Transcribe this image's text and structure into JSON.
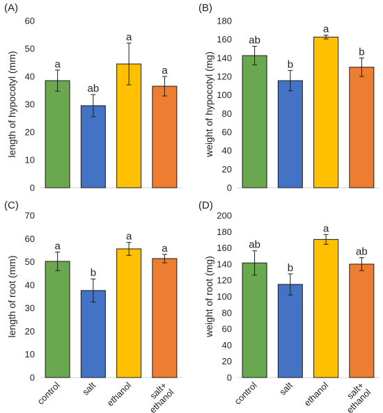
{
  "chart_data": [
    {
      "type": "bar",
      "panel_label": "(A)",
      "categories": [
        "control",
        "salt",
        "ethanol",
        "salt+\nethanol"
      ],
      "values": [
        38.5,
        29.5,
        44.5,
        36.5
      ],
      "errors": [
        3.8,
        4.0,
        7.5,
        3.5
      ],
      "significance": [
        "a",
        "ab",
        "a",
        "a"
      ],
      "ylabel": "length of hypocotyl (mm)",
      "ylim": [
        0,
        60
      ],
      "yticks": [
        0,
        10,
        20,
        30,
        40,
        50,
        60
      ],
      "show_categories": false
    },
    {
      "type": "bar",
      "panel_label": "(B)",
      "categories": [
        "control",
        "salt",
        "ethanol",
        "salt+\nethanol"
      ],
      "values": [
        142.5,
        115.5,
        162.5,
        130
      ],
      "errors": [
        10,
        11,
        2,
        10
      ],
      "significance": [
        "ab",
        "b",
        "a",
        "b"
      ],
      "ylabel": "weight of hypocotyl (mg)",
      "ylim": [
        0,
        180
      ],
      "yticks": [
        0,
        20,
        40,
        60,
        80,
        100,
        120,
        140,
        160,
        180
      ],
      "show_categories": false
    },
    {
      "type": "bar",
      "panel_label": "(C)",
      "categories": [
        "control",
        "salt",
        "ethanol",
        "salt+\nethanol"
      ],
      "values": [
        50.2,
        37.6,
        55.6,
        51.4
      ],
      "errors": [
        4.0,
        5.0,
        2.8,
        1.8
      ],
      "significance": [
        "a",
        "b",
        "a",
        "a"
      ],
      "ylabel": "length of root (mm)",
      "ylim": [
        0,
        70
      ],
      "yticks": [
        0,
        10,
        20,
        30,
        40,
        50,
        60,
        70
      ],
      "show_categories": true
    },
    {
      "type": "bar",
      "panel_label": "(D)",
      "categories": [
        "control",
        "salt",
        "ethanol",
        "salt+\nethanol"
      ],
      "values": [
        141.5,
        115,
        170.5,
        140
      ],
      "errors": [
        15,
        13,
        6,
        8
      ],
      "significance": [
        "ab",
        "b",
        "a",
        "ab"
      ],
      "ylabel": "weight of root (mg)",
      "ylim": [
        0,
        200
      ],
      "yticks": [
        0,
        20,
        40,
        60,
        80,
        100,
        120,
        140,
        160,
        180,
        200
      ],
      "show_categories": true
    }
  ],
  "colors": [
    "#6aa84f",
    "#4472c4",
    "#ffc000",
    "#ed7d31"
  ]
}
